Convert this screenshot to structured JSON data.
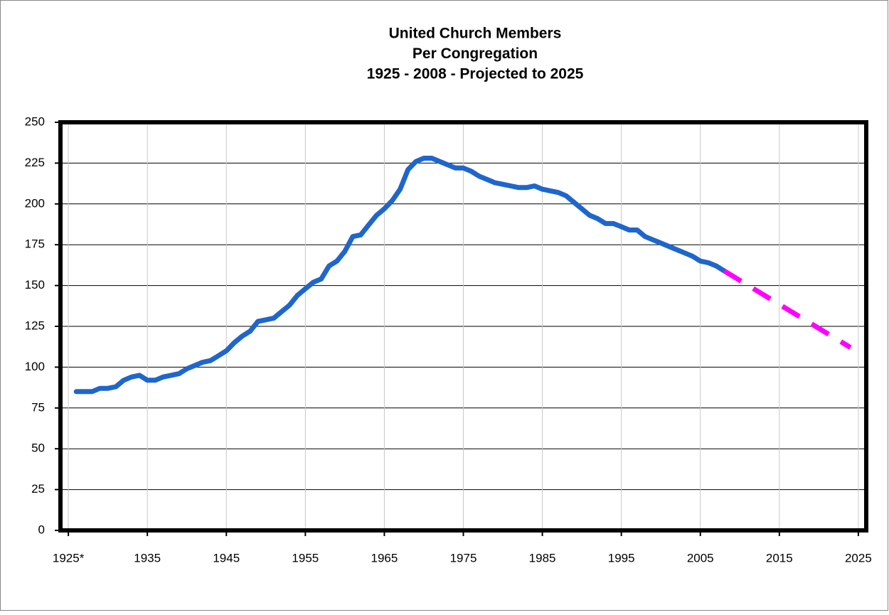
{
  "chart_data": {
    "type": "line",
    "title": [
      "United Church Members",
      "Per Congregation",
      "1925 - 2008 -  Projected to 2025"
    ],
    "xlim": [
      1924,
      2026
    ],
    "xticks": [
      {
        "value": 1925,
        "label": "1925*"
      },
      1935,
      1945,
      1955,
      1965,
      1975,
      1985,
      1995,
      2005,
      2015,
      2025
    ],
    "ylim": [
      0,
      250
    ],
    "yticks": [
      0,
      25,
      50,
      75,
      100,
      125,
      150,
      175,
      200,
      225,
      250
    ],
    "grid": true,
    "series": [
      {
        "color": "#1f66cc",
        "dashed": false,
        "x": [
          1926,
          1927,
          1928,
          1929,
          1930,
          1931,
          1932,
          1933,
          1934,
          1935,
          1936,
          1937,
          1938,
          1939,
          1940,
          1941,
          1942,
          1943,
          1944,
          1945,
          1946,
          1947,
          1948,
          1949,
          1950,
          1951,
          1952,
          1953,
          1954,
          1955,
          1956,
          1957,
          1958,
          1959,
          1960,
          1961,
          1962,
          1963,
          1964,
          1965,
          1966,
          1967,
          1968,
          1969,
          1970,
          1971,
          1972,
          1973,
          1974,
          1975,
          1976,
          1977,
          1978,
          1979,
          1980,
          1981,
          1982,
          1983,
          1984,
          1985,
          1986,
          1987,
          1988,
          1989,
          1990,
          1991,
          1992,
          1993,
          1994,
          1995,
          1996,
          1997,
          1998,
          1999,
          2000,
          2001,
          2002,
          2003,
          2004,
          2005,
          2006,
          2007,
          2008
        ],
        "values": [
          85,
          85,
          85,
          87,
          87,
          88,
          92,
          94,
          95,
          92,
          92,
          94,
          95,
          96,
          99,
          101,
          103,
          104,
          107,
          110,
          115,
          119,
          122,
          128,
          129,
          130,
          134,
          138,
          144,
          148,
          152,
          154,
          162,
          165,
          171,
          180,
          181,
          187,
          193,
          197,
          202,
          209,
          221,
          226,
          228,
          228,
          226,
          224,
          222,
          222,
          220,
          217,
          215,
          213,
          212,
          211,
          210,
          210,
          211,
          209,
          208,
          207,
          205,
          201,
          197,
          193,
          191,
          188,
          188,
          186,
          184,
          184,
          180,
          178,
          176,
          174,
          172,
          170,
          168,
          165,
          164,
          162,
          159
        ]
      },
      {
        "color": "#ff00ff",
        "dashed": true,
        "x": [
          2008,
          2024
        ],
        "values": [
          159,
          112
        ]
      }
    ]
  }
}
